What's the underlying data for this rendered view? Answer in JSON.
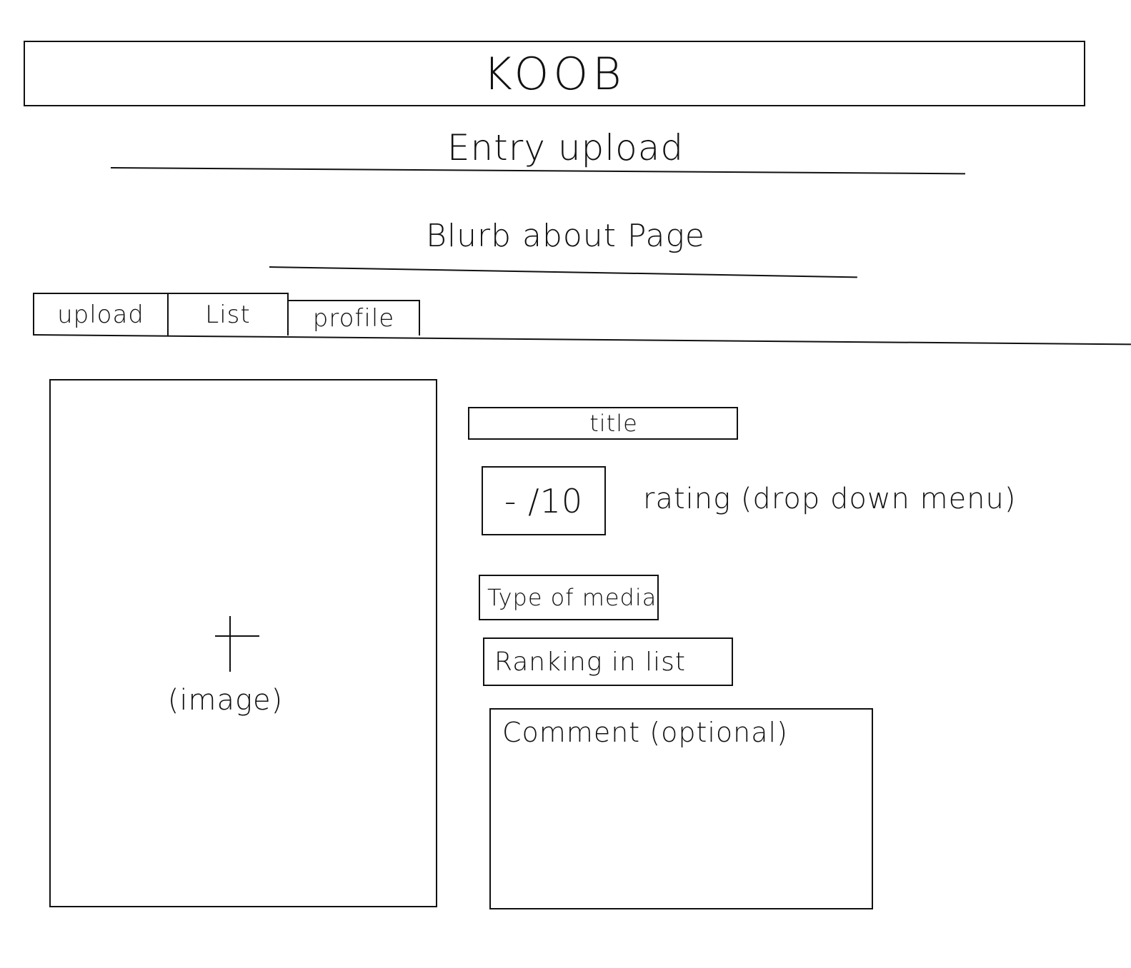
{
  "header": {
    "app_title": "KOOB"
  },
  "page": {
    "title": "Entry upload",
    "blurb": "Blurb about Page"
  },
  "tabs": [
    {
      "label": "upload"
    },
    {
      "label": "List"
    },
    {
      "label": "profile"
    }
  ],
  "upload_form": {
    "image": {
      "label": "(image)",
      "icon": "plus-icon"
    },
    "title_field": {
      "placeholder": "title"
    },
    "rating": {
      "value": "- /10",
      "note": "rating (drop down menu)"
    },
    "media_type_field": {
      "placeholder": "Type of media"
    },
    "ranking_field": {
      "placeholder": "Ranking in list"
    },
    "comment_field": {
      "placeholder": "Comment (optional)"
    }
  }
}
